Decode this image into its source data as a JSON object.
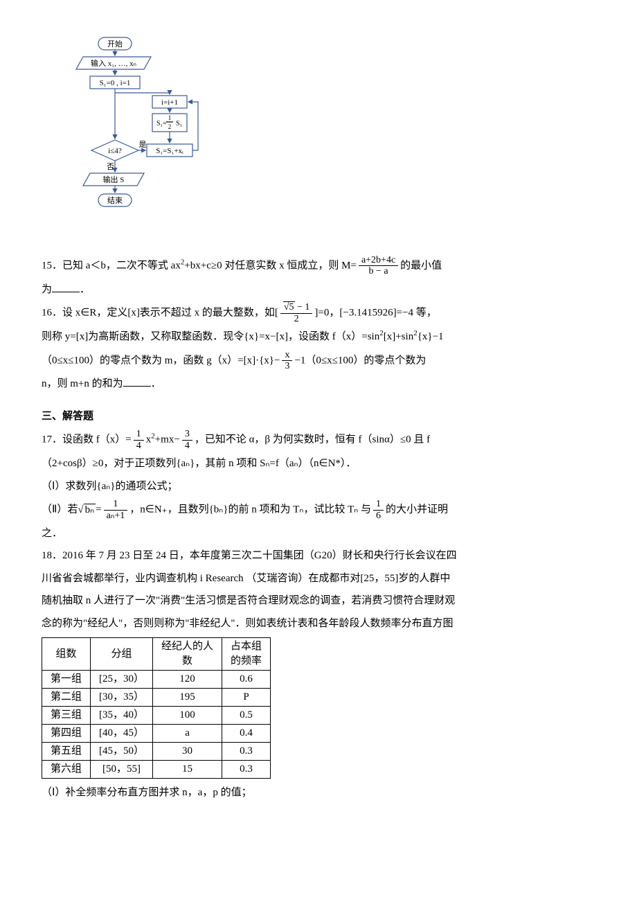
{
  "flowchart": {
    "start": "开始",
    "input": "输入 x₁, …, xₙ",
    "init": "S₁=0 , i=1",
    "inc": "i=i+1",
    "shalf_num": "1",
    "shalf_den": "2",
    "shalf_lhs": "S₁=",
    "shalf_rhs": "S₁",
    "cond": "i≤4?",
    "sum": "S₁=S₁+xᵢ",
    "yes": "是",
    "no": "否",
    "output": "输出 S",
    "end": "结束",
    "box_border": "#3a5a9a",
    "fill": "#ffffff",
    "stroke_width": 1.2
  },
  "q15": {
    "prefix": "15．已知 a＜b，二次不等式 ax",
    "midA": "+bx+c≥0 对任意实数 x 恒成立，则 M=",
    "frac_num": "a+2b+4c",
    "frac_den": "b − a",
    "suffix": "的最小值",
    "line2": "为",
    "tail": "．"
  },
  "q16": {
    "a": "16．设 x∈R，定义[x]表示不超过 x 的最大整数，如[",
    "sqrt_num_inner": "5",
    "sqrt_tail": " − 1",
    "sqrt_den": "2",
    "b": "]=0，[−3.1415926]=−4 等，",
    "c": "则称 y=[x]为高斯函数，又称取整函数．现令{x}=x−[x]，设函数 f（x）=sin",
    "d": "[x]+sin",
    "e": "{x}−1",
    "f": "（0≤x≤100）的零点个数为 m，函数 g（x）=[x]·{x}−",
    "gx_num": "x",
    "gx_den": "3",
    "g": "−1（0≤x≤100）的零点个数为",
    "h": "n，则 m+n 的和为",
    "tail": "．"
  },
  "sec3": "三、解答题",
  "q17": {
    "a": "17．设函数 f（x）=",
    "fa_num": "1",
    "fa_den": "4",
    "b": "x",
    "c": "+mx−",
    "fb_num": "3",
    "fb_den": "4",
    "d": "，已知不论 α，β 为何实数时，恒有 f（sinα）≤0 且 f",
    "e": "（2+cosβ）≥0，对于正项数列{aₙ}，其前 n 项和 Sₙ=f（aₙ）（n∈N*）．",
    "p1": "（Ⅰ）求数列{aₙ}的通项公式；",
    "p2a": "（Ⅱ）若",
    "sqrt_bn": "bₙ",
    "p2b": "=",
    "fr2_num": "1",
    "fr2_den": "aₙ+1",
    "p2c": "，n∈N₊，且数列{bₙ}的前 n 项和为 Tₙ，试比较 Tₙ 与",
    "fr3_num": "1",
    "fr3_den": "6",
    "p2d": "的大小并证明",
    "p2e": "之．"
  },
  "q18": {
    "a": "18．2016 年 7 月 23 日至 24 日，本年度第三次二十国集团（G20）财长和央行行长会议在四",
    "b": "川省省会城都举行，业内调查机构 i Research （艾瑞咨询）在成都市对[25，55]岁的人群中",
    "c": "随机抽取 n 人进行了一次\"消费\"生活习惯是否符合理财观念的调查，若消费习惯符合理财观",
    "d": "念的称为\"经纪人\"，否则则称为\"非经纪人\"．则如表统计表和各年龄段人数频率分布直方图",
    "p1": "（Ⅰ）补全频率分布直方图并求 n，a，p 的值；"
  },
  "table": {
    "headers": [
      "组数",
      "分组",
      "经纪人的人\n数",
      "占本组\n的频率"
    ],
    "rows": [
      [
        "第一组",
        "[25，30）",
        "120",
        "0.6"
      ],
      [
        "第二组",
        "[30，35）",
        "195",
        "P"
      ],
      [
        "第三组",
        "[35，40）",
        "100",
        "0.5"
      ],
      [
        "第四组",
        "[40，45）",
        "a",
        "0.4"
      ],
      [
        "第五组",
        "[45，50）",
        "30",
        "0.3"
      ],
      [
        "第六组",
        "[50，55]",
        "15",
        "0.3"
      ]
    ]
  }
}
